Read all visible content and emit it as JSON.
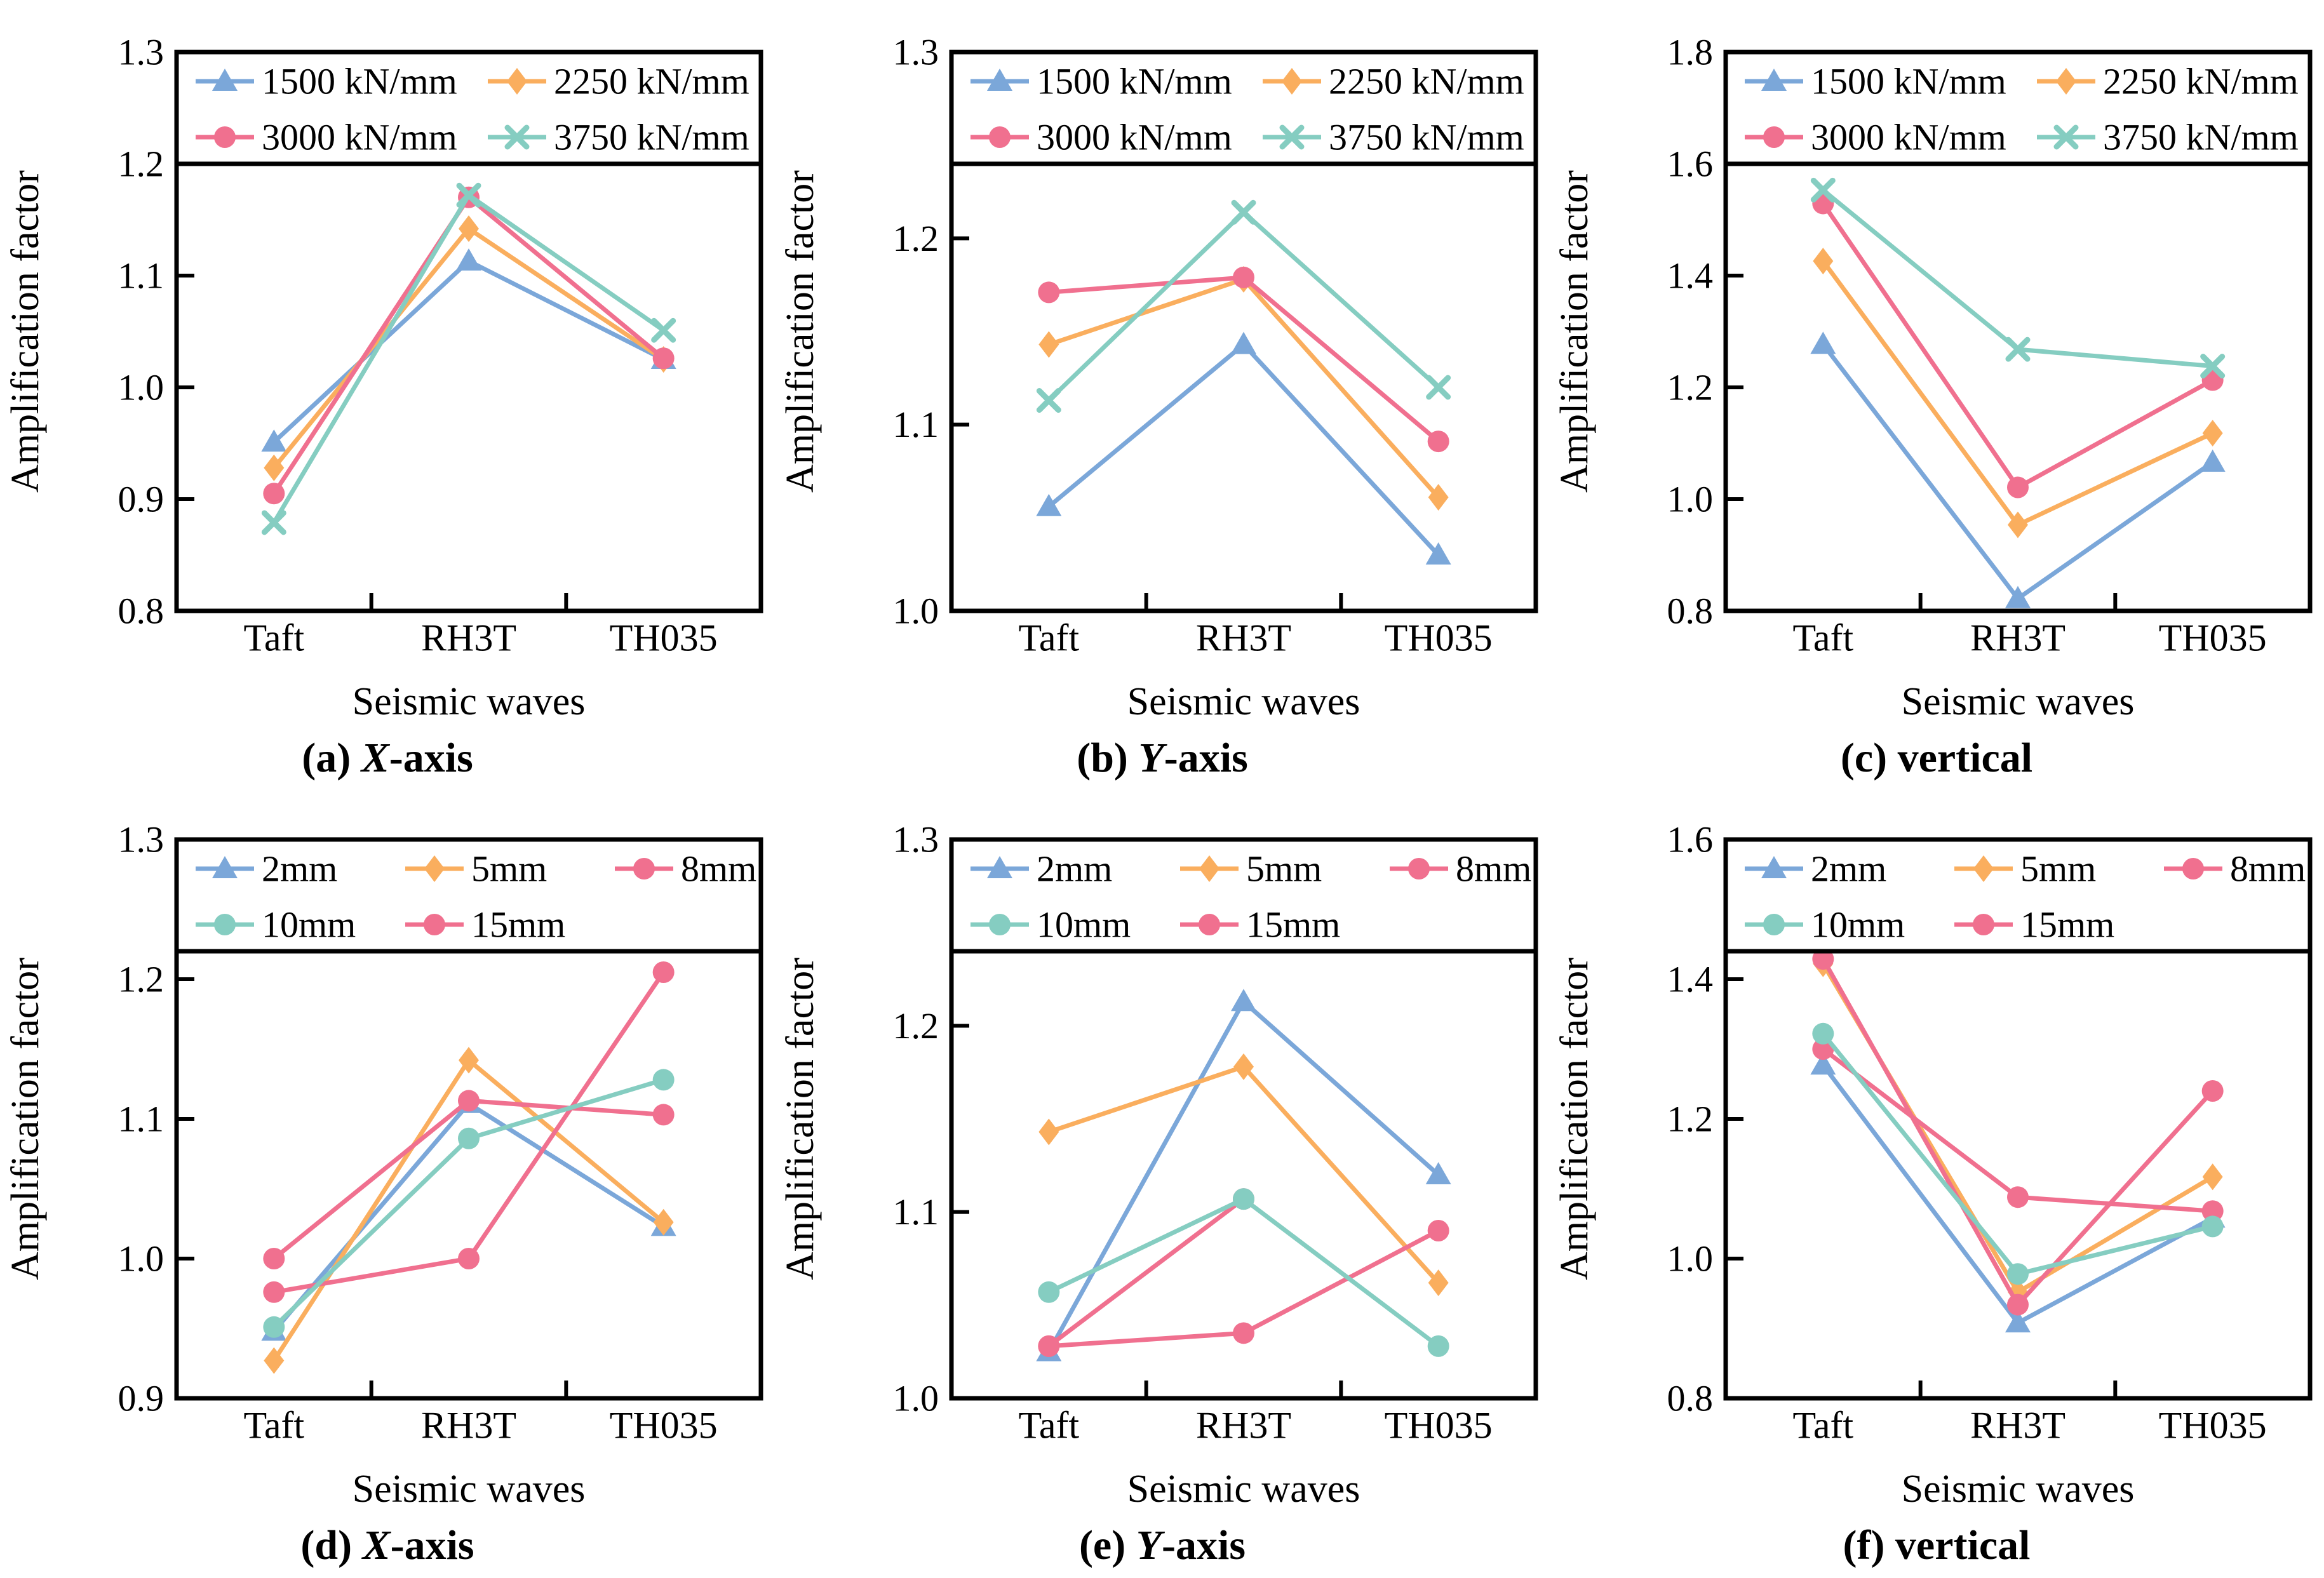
{
  "figure": {
    "background": "#FFFFFF",
    "frame_color": "#000000",
    "text_color": "#000000"
  },
  "chart_data": [
    {
      "id": "a",
      "type": "line",
      "caption": "(a) X-axis",
      "xlabel": "Seismic waves",
      "ylabel": "Amplification factor",
      "categories": [
        "Taft",
        "RH3T",
        "TH035"
      ],
      "ylim": [
        0.8,
        1.3
      ],
      "ytick_step": 0.1,
      "grid": false,
      "legend_position": "top-inside",
      "legend_rows": [
        [
          0,
          1
        ],
        [
          2,
          3
        ]
      ],
      "z_order": [
        0,
        1,
        2,
        3
      ],
      "series": [
        {
          "name": "1500 kN/mm",
          "color": "#7BA7D9",
          "marker": "triangle",
          "values": [
            0.951,
            1.113,
            1.025
          ]
        },
        {
          "name": "2250 kN/mm",
          "color": "#FAAE5E",
          "marker": "diamond",
          "values": [
            0.928,
            1.142,
            1.025
          ]
        },
        {
          "name": "3000 kN/mm",
          "color": "#F0708F",
          "marker": "circle",
          "values": [
            0.905,
            1.17,
            1.026
          ]
        },
        {
          "name": "3750 kN/mm",
          "color": "#85CDC1",
          "marker": "x",
          "values": [
            0.879,
            1.172,
            1.051
          ]
        }
      ]
    },
    {
      "id": "b",
      "type": "line",
      "caption": "(b) Y-axis",
      "xlabel": "Seismic waves",
      "ylabel": "Amplification factor",
      "categories": [
        "Taft",
        "RH3T",
        "TH035"
      ],
      "ylim": [
        1.0,
        1.3
      ],
      "ytick_step": 0.1,
      "grid": false,
      "legend_position": "top-inside",
      "legend_rows": [
        [
          0,
          1
        ],
        [
          2,
          3
        ]
      ],
      "z_order": [
        0,
        1,
        2,
        3
      ],
      "series": [
        {
          "name": "1500 kN/mm",
          "color": "#7BA7D9",
          "marker": "triangle",
          "values": [
            1.056,
            1.143,
            1.03
          ]
        },
        {
          "name": "2250 kN/mm",
          "color": "#FAAE5E",
          "marker": "diamond",
          "values": [
            1.143,
            1.178,
            1.061
          ]
        },
        {
          "name": "3000 kN/mm",
          "color": "#F0708F",
          "marker": "circle",
          "values": [
            1.171,
            1.179,
            1.091
          ]
        },
        {
          "name": "3750 kN/mm",
          "color": "#85CDC1",
          "marker": "x",
          "values": [
            1.113,
            1.214,
            1.12
          ]
        }
      ]
    },
    {
      "id": "c",
      "type": "line",
      "caption": "(c) vertical",
      "xlabel": "Seismic waves",
      "ylabel": "Amplification factor",
      "categories": [
        "Taft",
        "RH3T",
        "TH035"
      ],
      "ylim": [
        0.8,
        1.8
      ],
      "ytick_step": 0.2,
      "grid": false,
      "legend_position": "top-inside",
      "legend_rows": [
        [
          0,
          1
        ],
        [
          2,
          3
        ]
      ],
      "z_order": [
        0,
        1,
        2,
        3
      ],
      "series": [
        {
          "name": "1500 kN/mm",
          "color": "#7BA7D9",
          "marker": "triangle",
          "values": [
            1.277,
            0.822,
            1.066
          ]
        },
        {
          "name": "2250 kN/mm",
          "color": "#FAAE5E",
          "marker": "diamond",
          "values": [
            1.426,
            0.954,
            1.118
          ]
        },
        {
          "name": "3000 kN/mm",
          "color": "#F0708F",
          "marker": "circle",
          "values": [
            1.529,
            1.021,
            1.213
          ]
        },
        {
          "name": "3750 kN/mm",
          "color": "#85CDC1",
          "marker": "x",
          "values": [
            1.553,
            1.268,
            1.238
          ]
        }
      ]
    },
    {
      "id": "d",
      "type": "line",
      "caption": "(d) X-axis",
      "xlabel": "Seismic waves",
      "ylabel": "Amplification factor",
      "categories": [
        "Taft",
        "RH3T",
        "TH035"
      ],
      "ylim": [
        0.9,
        1.3
      ],
      "ytick_step": 0.1,
      "grid": false,
      "legend_position": "top-inside",
      "legend_rows": [
        [
          0,
          1,
          2
        ],
        [
          3,
          4
        ]
      ],
      "z_order": [
        0,
        1,
        2,
        4,
        3
      ],
      "series": [
        {
          "name": "2mm",
          "color": "#7BA7D9",
          "marker": "triangle",
          "values": [
            0.948,
            1.111,
            1.023
          ]
        },
        {
          "name": "5mm",
          "color": "#FAAE5E",
          "marker": "diamond",
          "values": [
            0.927,
            1.142,
            1.026
          ]
        },
        {
          "name": "8mm",
          "color": "#F0708F",
          "marker": "circle",
          "values": [
            1.0,
            1.113,
            1.103
          ]
        },
        {
          "name": "10mm",
          "color": "#85CDC1",
          "marker": "circle",
          "values": [
            0.951,
            1.086,
            1.128
          ]
        },
        {
          "name": "15mm",
          "color": "#F0708F",
          "marker": "circle",
          "values": [
            0.976,
            1.0,
            1.205
          ]
        }
      ]
    },
    {
      "id": "e",
      "type": "line",
      "caption": "(e) Y-axis",
      "xlabel": "Seismic waves",
      "ylabel": "Amplification factor",
      "categories": [
        "Taft",
        "RH3T",
        "TH035"
      ],
      "ylim": [
        1.0,
        1.3
      ],
      "ytick_step": 0.1,
      "grid": false,
      "legend_position": "top-inside",
      "legend_rows": [
        [
          0,
          1,
          2
        ],
        [
          3,
          4
        ]
      ],
      "z_order": [
        0,
        1,
        2,
        4,
        3
      ],
      "series": [
        {
          "name": "2mm",
          "color": "#7BA7D9",
          "marker": "triangle",
          "values": [
            1.025,
            1.213,
            1.12
          ]
        },
        {
          "name": "5mm",
          "color": "#FAAE5E",
          "marker": "diamond",
          "values": [
            1.143,
            1.178,
            1.062
          ]
        },
        {
          "name": "8mm",
          "color": "#F0708F",
          "marker": "circle",
          "values": [
            1.028,
            1.035,
            1.09
          ]
        },
        {
          "name": "10mm",
          "color": "#85CDC1",
          "marker": "circle",
          "values": [
            1.057,
            1.107,
            1.028
          ]
        },
        {
          "name": "15mm",
          "color": "#F0708F",
          "marker": "circle",
          "values": [
            1.028,
            1.107,
            null
          ]
        }
      ]
    },
    {
      "id": "f",
      "type": "line",
      "caption": "(f) vertical",
      "xlabel": "Seismic waves",
      "ylabel": "Amplification factor",
      "categories": [
        "Taft",
        "RH3T",
        "TH035"
      ],
      "ylim": [
        0.8,
        1.6
      ],
      "ytick_step": 0.2,
      "grid": false,
      "legend_position": "top-inside",
      "legend_rows": [
        [
          0,
          1,
          2
        ],
        [
          3,
          4
        ]
      ],
      "z_order": [
        0,
        1,
        2,
        4,
        3
      ],
      "series": [
        {
          "name": "2mm",
          "color": "#7BA7D9",
          "marker": "triangle",
          "values": [
            1.277,
            0.908,
            1.058
          ]
        },
        {
          "name": "5mm",
          "color": "#FAAE5E",
          "marker": "diamond",
          "values": [
            1.422,
            0.952,
            1.117
          ]
        },
        {
          "name": "8mm",
          "color": "#F0708F",
          "marker": "circle",
          "values": [
            1.3,
            1.088,
            1.068
          ]
        },
        {
          "name": "10mm",
          "color": "#85CDC1",
          "marker": "circle",
          "values": [
            1.322,
            0.978,
            1.046
          ]
        },
        {
          "name": "15mm",
          "color": "#F0708F",
          "marker": "circle",
          "values": [
            1.429,
            0.934,
            1.24
          ]
        }
      ]
    }
  ]
}
